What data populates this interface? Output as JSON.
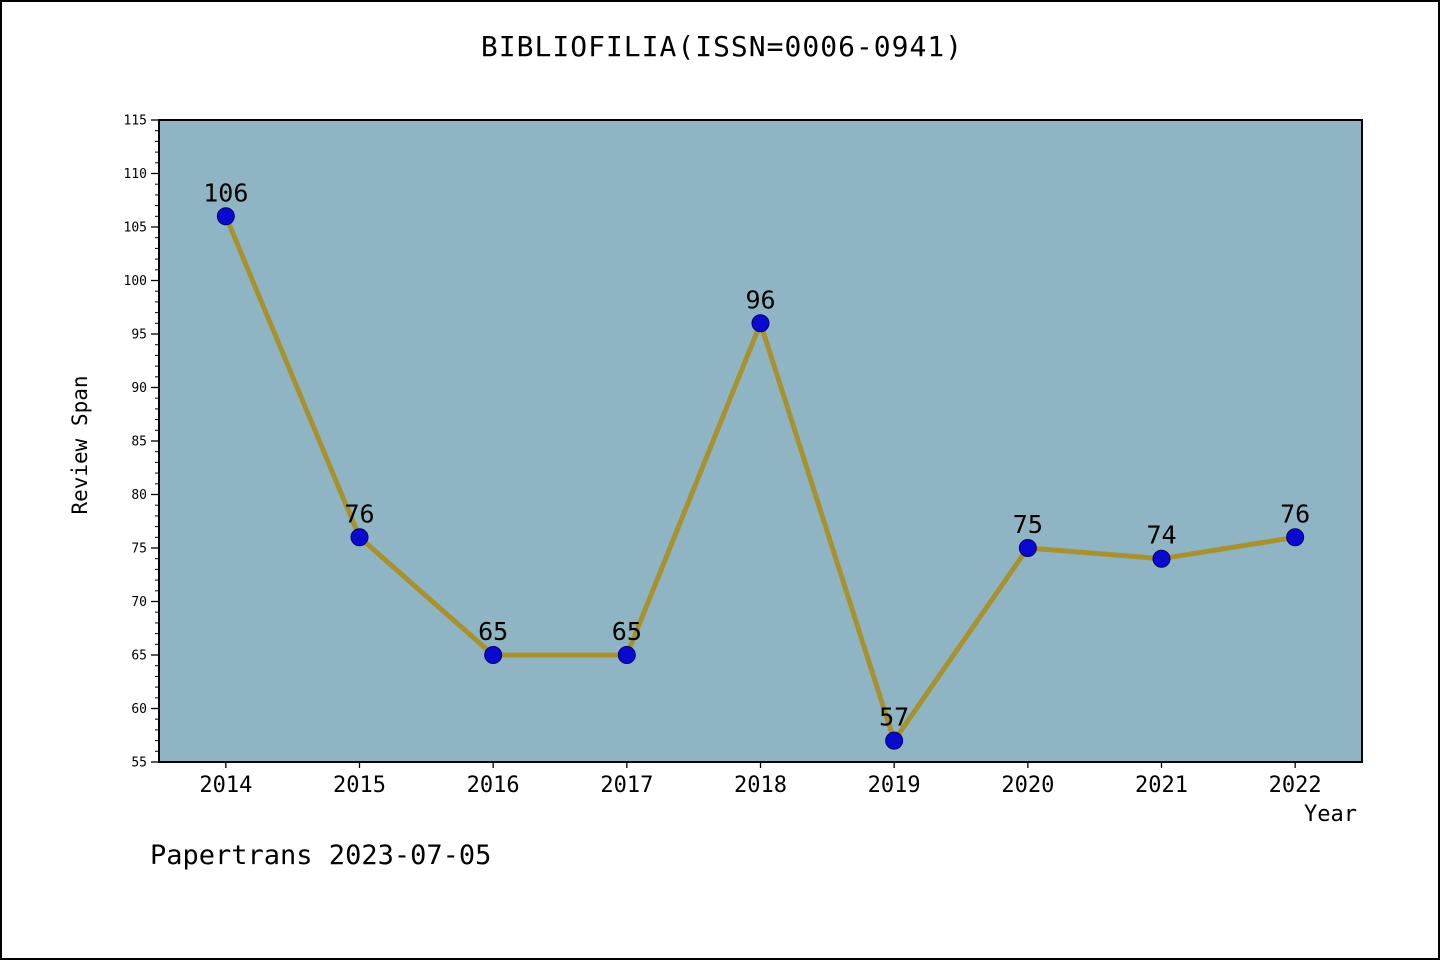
{
  "title": "BIBLIOFILIA(ISSN=0006-0941)",
  "footer": "Papertrans 2023-07-05",
  "chart_data": {
    "type": "line",
    "title": "BIBLIOFILIA(ISSN=0006-0941)",
    "xlabel": "Year",
    "ylabel": "Review Span",
    "x": [
      2014,
      2015,
      2016,
      2017,
      2018,
      2019,
      2020,
      2021,
      2022
    ],
    "values": [
      106,
      76,
      65,
      65,
      96,
      57,
      75,
      74,
      76
    ],
    "xlim": [
      2013.5,
      2022.5
    ],
    "ylim": [
      55,
      115
    ],
    "yticks": [
      55,
      60,
      65,
      70,
      75,
      80,
      85,
      90,
      95,
      100,
      105,
      110,
      115
    ],
    "y_minor_step": 1,
    "grid": false,
    "legend": "none",
    "plot_bg": "#8fb5c4",
    "line_color": "#a8922f",
    "marker_color": "#0909cf",
    "marker_edge": "#00006e",
    "axis_color": "#000000"
  }
}
